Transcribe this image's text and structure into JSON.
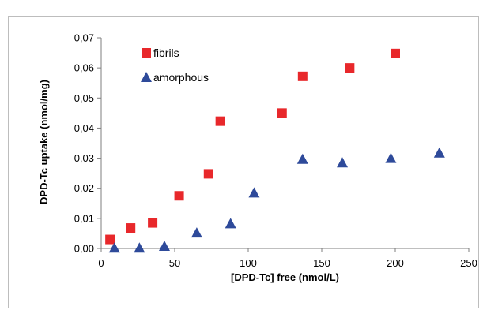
{
  "chart_data": {
    "type": "scatter",
    "title": "",
    "xlabel": "[DPD-Tc] free (nmol/L)",
    "ylabel": "DPD-Tc uptake (nmol/mg)",
    "xlim": [
      0,
      250
    ],
    "ylim": [
      0,
      0.07
    ],
    "x_ticks": [
      "0",
      "50",
      "100",
      "150",
      "200",
      "250"
    ],
    "y_ticks": [
      "0,00",
      "0,01",
      "0,02",
      "0,03",
      "0,04",
      "0,05",
      "0,06",
      "0,07"
    ],
    "grid": false,
    "legend_position": "top-left",
    "series": [
      {
        "name": "fibrils",
        "marker": "square",
        "color": "#e8282b",
        "points": [
          {
            "x": 6,
            "y": 0.003
          },
          {
            "x": 20,
            "y": 0.0068
          },
          {
            "x": 35,
            "y": 0.0085
          },
          {
            "x": 53,
            "y": 0.0175
          },
          {
            "x": 73,
            "y": 0.0248
          },
          {
            "x": 81,
            "y": 0.0423
          },
          {
            "x": 123,
            "y": 0.045
          },
          {
            "x": 137,
            "y": 0.0572
          },
          {
            "x": 169,
            "y": 0.06
          },
          {
            "x": 200,
            "y": 0.0648
          }
        ]
      },
      {
        "name": "amorphous",
        "marker": "triangle",
        "color": "#2e4a9a",
        "points": [
          {
            "x": 9,
            "y": 0.0002
          },
          {
            "x": 26,
            "y": 0.0002
          },
          {
            "x": 43,
            "y": 0.0008
          },
          {
            "x": 65,
            "y": 0.0052
          },
          {
            "x": 88,
            "y": 0.0083
          },
          {
            "x": 104,
            "y": 0.0185
          },
          {
            "x": 137,
            "y": 0.0297
          },
          {
            "x": 164,
            "y": 0.0285
          },
          {
            "x": 197,
            "y": 0.03
          },
          {
            "x": 230,
            "y": 0.0318
          }
        ]
      }
    ]
  }
}
